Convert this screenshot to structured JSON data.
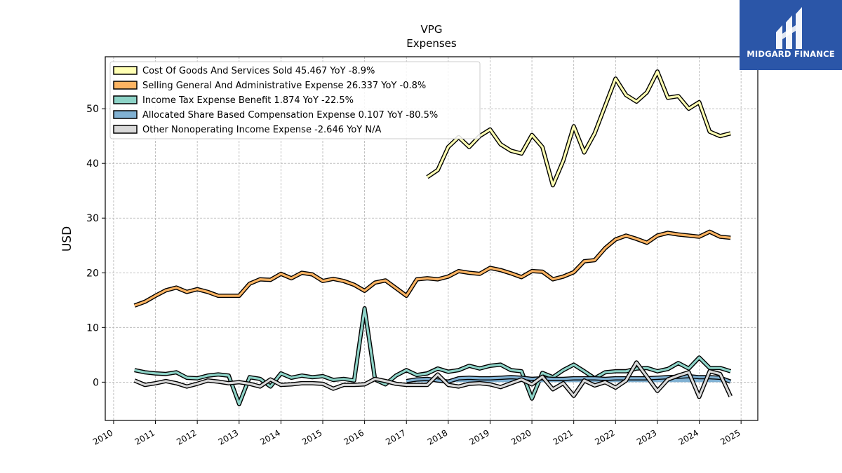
{
  "brand": {
    "name": "MIDGARD FINANCE",
    "bg_color": "#2b56a8"
  },
  "chart_data": {
    "type": "line",
    "title": "VPG",
    "subtitle": "Expenses",
    "xlabel": "",
    "ylabel": "USD",
    "xlim": [
      2009.8,
      2025.4
    ],
    "ylim": [
      -7,
      59.5
    ],
    "x_ticks": [
      "2010",
      "2011",
      "2012",
      "2013",
      "2014",
      "2015",
      "2016",
      "2017",
      "2018",
      "2019",
      "2020",
      "2021",
      "2022",
      "2023",
      "2024",
      "2025"
    ],
    "y_ticks": [
      0,
      10,
      20,
      30,
      40,
      50
    ],
    "grid": true,
    "legend_position": "top-left",
    "series": [
      {
        "name": "Cost Of Goods And Services Sold",
        "legend_label": "Cost Of Goods And Services Sold  45.467 YoY -8.9%",
        "color": "#ffffb3",
        "x": [
          2017.5,
          2017.75,
          2018.0,
          2018.25,
          2018.5,
          2018.75,
          2019.0,
          2019.25,
          2019.5,
          2019.75,
          2020.0,
          2020.25,
          2020.5,
          2020.75,
          2021.0,
          2021.25,
          2021.5,
          2021.75,
          2022.0,
          2022.25,
          2022.5,
          2022.75,
          2023.0,
          2023.25,
          2023.5,
          2023.75,
          2024.0,
          2024.25,
          2024.5,
          2024.75
        ],
        "values": [
          37.5,
          38.8,
          43.0,
          44.8,
          43.0,
          45.0,
          46.2,
          43.5,
          42.3,
          41.8,
          45.2,
          43.0,
          36.0,
          40.5,
          46.8,
          42.0,
          45.5,
          50.5,
          55.5,
          52.5,
          51.3,
          53.0,
          56.8,
          52.0,
          52.3,
          50.0,
          51.2,
          45.8,
          45.0,
          45.5
        ]
      },
      {
        "name": "Selling General And Administrative Expense",
        "legend_label": "Selling General And Administrative Expense  26.337 YoY -0.8%",
        "color": "#fdb462",
        "x": [
          2010.5,
          2010.75,
          2011.0,
          2011.25,
          2011.5,
          2011.75,
          2012.0,
          2012.25,
          2012.5,
          2012.75,
          2013.0,
          2013.25,
          2013.5,
          2013.75,
          2014.0,
          2014.25,
          2014.5,
          2014.75,
          2015.0,
          2015.25,
          2015.5,
          2015.75,
          2016.0,
          2016.25,
          2016.5,
          2016.75,
          2017.0,
          2017.25,
          2017.5,
          2017.75,
          2018.0,
          2018.25,
          2018.5,
          2018.75,
          2019.0,
          2019.25,
          2019.5,
          2019.75,
          2020.0,
          2020.25,
          2020.5,
          2020.75,
          2021.0,
          2021.25,
          2021.5,
          2021.75,
          2022.0,
          2022.25,
          2022.5,
          2022.75,
          2023.0,
          2023.25,
          2023.5,
          2023.75,
          2024.0,
          2024.25,
          2024.5,
          2024.75
        ],
        "values": [
          14.0,
          14.7,
          15.8,
          16.8,
          17.3,
          16.5,
          17.0,
          16.5,
          15.8,
          15.8,
          15.8,
          18.0,
          18.8,
          18.7,
          19.8,
          19.0,
          20.0,
          19.7,
          18.5,
          18.9,
          18.5,
          17.8,
          16.7,
          18.2,
          18.6,
          17.2,
          15.8,
          18.8,
          19.0,
          18.8,
          19.3,
          20.3,
          20.0,
          19.8,
          20.9,
          20.5,
          19.9,
          19.2,
          20.3,
          20.2,
          18.8,
          19.3,
          20.1,
          22.1,
          22.3,
          24.5,
          26.1,
          26.8,
          26.2,
          25.5,
          26.8,
          27.3,
          27.0,
          26.8,
          26.6,
          27.5,
          26.6,
          26.4
        ]
      },
      {
        "name": "Income Tax Expense Benefit",
        "legend_label": "Income Tax Expense Benefit  1.874 YoY -22.5%",
        "color": "#8dd3c7",
        "x": [
          2010.5,
          2010.75,
          2011.0,
          2011.25,
          2011.5,
          2011.75,
          2012.0,
          2012.25,
          2012.5,
          2012.75,
          2013.0,
          2013.25,
          2013.5,
          2013.75,
          2014.0,
          2014.25,
          2014.5,
          2014.75,
          2015.0,
          2015.25,
          2015.5,
          2015.75,
          2016.0,
          2016.25,
          2016.5,
          2016.75,
          2017.0,
          2017.25,
          2017.5,
          2017.75,
          2018.0,
          2018.25,
          2018.5,
          2018.75,
          2019.0,
          2019.25,
          2019.5,
          2019.75,
          2020.0,
          2020.25,
          2020.5,
          2020.75,
          2021.0,
          2021.25,
          2021.5,
          2021.75,
          2022.0,
          2022.25,
          2022.5,
          2022.75,
          2023.0,
          2023.25,
          2023.5,
          2023.75,
          2024.0,
          2024.25,
          2024.5,
          2024.75
        ],
        "values": [
          2.2,
          1.8,
          1.6,
          1.5,
          1.8,
          0.8,
          0.7,
          1.2,
          1.4,
          1.2,
          -4.0,
          0.9,
          0.6,
          -0.8,
          1.6,
          0.8,
          1.2,
          0.9,
          1.1,
          0.4,
          0.6,
          0.3,
          13.5,
          0.5,
          -0.4,
          1.2,
          2.2,
          1.3,
          1.6,
          2.5,
          1.9,
          2.2,
          3.0,
          2.5,
          3.0,
          3.2,
          2.2,
          2.0,
          -3.0,
          1.7,
          0.9,
          2.2,
          3.2,
          2.0,
          0.7,
          1.8,
          2.0,
          2.0,
          2.5,
          2.6,
          2.0,
          2.4,
          3.5,
          2.5,
          4.5,
          2.6,
          2.6,
          2.0
        ]
      },
      {
        "name": "Allocated Share Based Compensation Expense",
        "legend_label": "Allocated Share Based Compensation Expense  0.107 YoY -80.5%",
        "color": "#80b1d3",
        "x": [
          2017.0,
          2017.25,
          2017.5,
          2017.75,
          2018.0,
          2018.25,
          2018.5,
          2018.75,
          2019.0,
          2019.25,
          2019.5,
          2019.75,
          2020.0,
          2020.25,
          2020.5,
          2020.75,
          2021.0,
          2021.25,
          2021.5,
          2021.75,
          2022.0,
          2022.25,
          2022.5,
          2022.75,
          2023.0,
          2023.25,
          2023.5,
          2023.75,
          2024.0,
          2024.25,
          2024.5,
          2024.75
        ],
        "values": [
          0.2,
          0.5,
          0.6,
          0.3,
          0.1,
          0.7,
          0.8,
          0.7,
          0.7,
          0.8,
          0.9,
          0.8,
          0.6,
          0.7,
          0.6,
          0.6,
          0.7,
          0.7,
          0.7,
          0.6,
          0.7,
          0.7,
          0.7,
          0.7,
          0.8,
          0.9,
          1.0,
          1.1,
          0.9,
          0.9,
          0.8,
          0.1
        ]
      },
      {
        "name": "Other Nonoperating Income Expense",
        "legend_label": "Other Nonoperating Income Expense  -2.646 YoY N/A",
        "color": "#d9d9d9",
        "x": [
          2010.5,
          2010.75,
          2011.0,
          2011.25,
          2011.5,
          2011.75,
          2012.0,
          2012.25,
          2012.5,
          2012.75,
          2013.0,
          2013.25,
          2013.5,
          2013.75,
          2014.0,
          2014.25,
          2014.5,
          2014.75,
          2015.0,
          2015.25,
          2015.5,
          2015.75,
          2016.0,
          2016.25,
          2016.5,
          2016.75,
          2017.0,
          2017.25,
          2017.5,
          2017.75,
          2018.0,
          2018.25,
          2018.5,
          2018.75,
          2019.0,
          2019.25,
          2019.5,
          2019.75,
          2020.0,
          2020.25,
          2020.5,
          2020.75,
          2021.0,
          2021.25,
          2021.5,
          2021.75,
          2022.0,
          2022.25,
          2022.5,
          2022.75,
          2023.0,
          2023.25,
          2023.5,
          2023.75,
          2024.0,
          2024.25,
          2024.5,
          2024.75
        ],
        "values": [
          0.3,
          -0.5,
          -0.2,
          0.2,
          -0.2,
          -0.8,
          -0.3,
          0.3,
          0.1,
          -0.2,
          0.0,
          -0.3,
          -0.8,
          0.5,
          -0.5,
          -0.4,
          -0.2,
          -0.2,
          -0.3,
          -1.2,
          -0.5,
          -0.5,
          -0.4,
          0.6,
          0.2,
          -0.3,
          -0.5,
          -0.5,
          -0.5,
          1.4,
          -0.5,
          -0.8,
          -0.3,
          -0.2,
          -0.4,
          -0.9,
          -0.2,
          0.5,
          -0.4,
          1.0,
          -1.3,
          -0.2,
          -2.5,
          0.3,
          -0.6,
          0.0,
          -1.0,
          0.3,
          3.6,
          1.0,
          -1.6,
          0.5,
          1.2,
          1.8,
          -2.7,
          2.0,
          1.5,
          -2.6
        ]
      }
    ]
  }
}
